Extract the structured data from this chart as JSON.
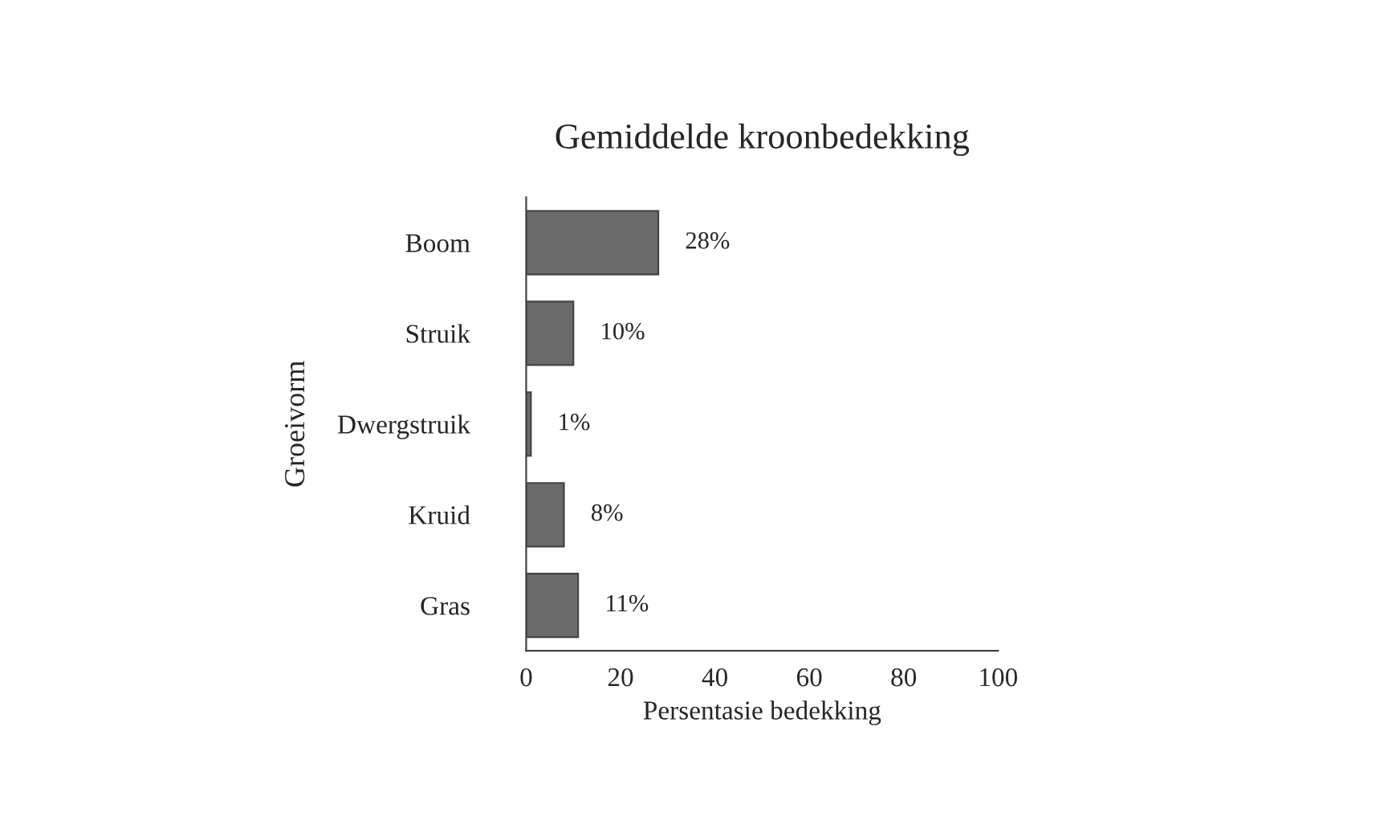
{
  "chart_data": {
    "type": "bar",
    "orientation": "horizontal",
    "title": "Gemiddelde kroonbedekking",
    "xlabel": "Persentasie bedekking",
    "ylabel": "Groeivorm",
    "categories": [
      "Boom",
      "Struik",
      "Dwergstruik",
      "Kruid",
      "Gras"
    ],
    "values": [
      28,
      10,
      1,
      8,
      11
    ],
    "color": "#6b6b6b",
    "value_labels": [
      "28%",
      "10%",
      "1%",
      "8%",
      "11%"
    ],
    "xlim": [
      0,
      100
    ],
    "xticks": [
      0,
      20,
      40,
      60,
      80,
      100
    ],
    "grid": false,
    "legend": false
  }
}
